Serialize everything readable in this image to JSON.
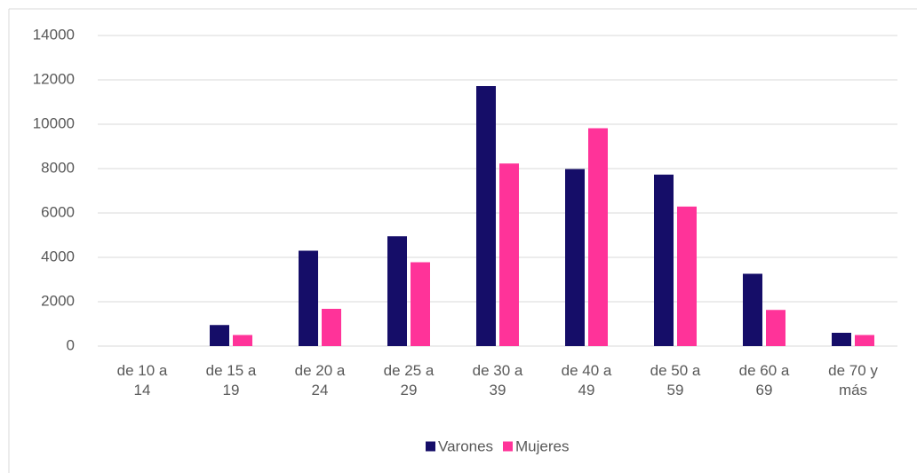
{
  "chart_data": {
    "type": "bar",
    "categories": [
      "de 10 a 14",
      "de 15 a 19",
      "de 20 a 24",
      "de 25 a 29",
      "de 30 a 39",
      "de 40 a 49",
      "de 50 a 59",
      "de 60 a 69",
      "de 70 y más"
    ],
    "series": [
      {
        "name": "Varones",
        "color": "#150d68",
        "values": [
          0,
          950,
          4300,
          4950,
          11720,
          7980,
          7730,
          3260,
          600
        ]
      },
      {
        "name": "Mujeres",
        "color": "#ff3399",
        "values": [
          0,
          500,
          1680,
          3780,
          8230,
          9820,
          6290,
          1630,
          500
        ]
      }
    ],
    "ylim": [
      0,
      14000
    ],
    "yticks": [
      0,
      2000,
      4000,
      6000,
      8000,
      10000,
      12000,
      14000
    ],
    "grid": true,
    "legend": "bottom"
  }
}
